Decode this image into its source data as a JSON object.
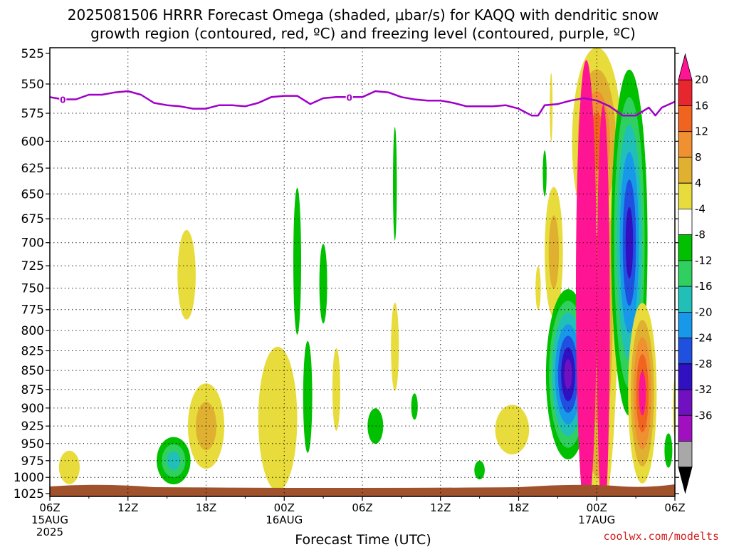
{
  "chart_data": {
    "type": "heatmap",
    "title_line1": "2025081506 HRRR Forecast Omega (shaded, μbar/s) for KAQQ with dendritic snow",
    "title_line2": "growth region (contoured, red, ºC) and freezing level (contoured, purple, ºC)",
    "xlabel": "Forecast Time (UTC)",
    "credit": "coolwx.com/modelts",
    "credit_color": "#d42020",
    "y_axis": {
      "scale": "pressure (hPa), inverted",
      "ticks": [
        "525",
        "550",
        "575",
        "600",
        "625",
        "650",
        "675",
        "700",
        "725",
        "750",
        "775",
        "800",
        "825",
        "850",
        "875",
        "900",
        "925",
        "950",
        "975",
        "1000",
        "1025"
      ],
      "range": [
        525,
        1025
      ]
    },
    "x_axis": {
      "range_hours": [
        0,
        48
      ],
      "ticks": [
        {
          "h": 0,
          "label": "06Z",
          "sub": "15AUG",
          "sub2": "2025"
        },
        {
          "h": 6,
          "label": "12Z",
          "sub": "",
          "sub2": ""
        },
        {
          "h": 12,
          "label": "18Z",
          "sub": "",
          "sub2": ""
        },
        {
          "h": 18,
          "label": "00Z",
          "sub": "16AUG",
          "sub2": ""
        },
        {
          "h": 24,
          "label": "06Z",
          "sub": "",
          "sub2": ""
        },
        {
          "h": 30,
          "label": "12Z",
          "sub": "",
          "sub2": ""
        },
        {
          "h": 36,
          "label": "18Z",
          "sub": "",
          "sub2": ""
        },
        {
          "h": 42,
          "label": "00Z",
          "sub": "17AUG",
          "sub2": ""
        },
        {
          "h": 48,
          "label": "06Z",
          "sub": "",
          "sub2": ""
        }
      ]
    },
    "grid": true,
    "colorbar": {
      "labels": [
        "20",
        "16",
        "12",
        "8",
        "4",
        "-4",
        "-8",
        "-12",
        "-16",
        "-20",
        "-24",
        "-28",
        "-32",
        "-36"
      ],
      "colors": [
        "#ff1493",
        "#e8262e",
        "#f06420",
        "#f09030",
        "#e0b030",
        "#e8dc3c",
        "#ffffff",
        "#00c000",
        "#30d060",
        "#20c0b8",
        "#1898e8",
        "#2050e0",
        "#3010c0",
        "#7010c0",
        "#a010c0",
        "#a8a8a8",
        "#000000"
      ]
    },
    "freezing_level": {
      "color": "#a000c8",
      "contour_label": "0",
      "label_hours": [
        1,
        23
      ],
      "points": [
        [
          0,
          561
        ],
        [
          1,
          563
        ],
        [
          2,
          563
        ],
        [
          3,
          559
        ],
        [
          4,
          559
        ],
        [
          5,
          557
        ],
        [
          6,
          556
        ],
        [
          7,
          559
        ],
        [
          8,
          566
        ],
        [
          9,
          568
        ],
        [
          10,
          569
        ],
        [
          11,
          571
        ],
        [
          12,
          571
        ],
        [
          13,
          568
        ],
        [
          14,
          568
        ],
        [
          15,
          569
        ],
        [
          16,
          566
        ],
        [
          17,
          561
        ],
        [
          18,
          560
        ],
        [
          19,
          560
        ],
        [
          20,
          567
        ],
        [
          21,
          562
        ],
        [
          22,
          561
        ],
        [
          23,
          561
        ],
        [
          24,
          561
        ],
        [
          25,
          556
        ],
        [
          26,
          557
        ],
        [
          27,
          561
        ],
        [
          28,
          563
        ],
        [
          29,
          564
        ],
        [
          30,
          564
        ],
        [
          31,
          566
        ],
        [
          32,
          569
        ],
        [
          33,
          569
        ],
        [
          34,
          569
        ],
        [
          35,
          568
        ],
        [
          36,
          571
        ],
        [
          37,
          577
        ],
        [
          37.5,
          577
        ],
        [
          38,
          568
        ],
        [
          39,
          567
        ],
        [
          40,
          564
        ],
        [
          41,
          562
        ],
        [
          42,
          564
        ],
        [
          43,
          569
        ],
        [
          44,
          577
        ],
        [
          45,
          577
        ],
        [
          46,
          570
        ],
        [
          46.5,
          577
        ],
        [
          47,
          570
        ],
        [
          48,
          565
        ]
      ]
    },
    "terrain": {
      "color": "#a0522d",
      "top_hpa": 1014
    },
    "omega_blobs": [
      {
        "h": 1.5,
        "p": 985,
        "rh": 0.8,
        "rp": 25,
        "levels": [
          4
        ]
      },
      {
        "h": 10.5,
        "p": 735,
        "rh": 0.7,
        "rp": 50,
        "levels": [
          4
        ]
      },
      {
        "h": 12,
        "p": 925,
        "rh": 1.4,
        "rp": 60,
        "levels": [
          4,
          8
        ]
      },
      {
        "h": 9.5,
        "p": 975,
        "rh": 1.3,
        "rp": 35,
        "levels": [
          -4,
          -8,
          -12
        ]
      },
      {
        "h": 17.5,
        "p": 915,
        "rh": 1.5,
        "rp": 100,
        "levels": [
          4
        ]
      },
      {
        "h": 19,
        "p": 720,
        "rh": 0.3,
        "rp": 80,
        "levels": [
          -4
        ]
      },
      {
        "h": 21,
        "p": 745,
        "rh": 0.3,
        "rp": 45,
        "levels": [
          -4
        ]
      },
      {
        "h": 19.8,
        "p": 885,
        "rh": 0.35,
        "rp": 75,
        "levels": [
          -4
        ]
      },
      {
        "h": 22,
        "p": 875,
        "rh": 0.3,
        "rp": 55,
        "levels": [
          4
        ]
      },
      {
        "h": 25,
        "p": 925,
        "rh": 0.6,
        "rp": 25,
        "levels": [
          -4
        ]
      },
      {
        "h": 26.5,
        "p": 640,
        "rh": 0.15,
        "rp": 55,
        "levels": [
          -4
        ]
      },
      {
        "h": 26.5,
        "p": 820,
        "rh": 0.3,
        "rp": 55,
        "levels": [
          4
        ]
      },
      {
        "h": 28,
        "p": 898,
        "rh": 0.25,
        "rp": 18,
        "levels": [
          -4
        ]
      },
      {
        "h": 33,
        "p": 989,
        "rh": 0.4,
        "rp": 14,
        "levels": [
          -4
        ]
      },
      {
        "h": 35.5,
        "p": 930,
        "rh": 1.3,
        "rp": 35,
        "levels": [
          4
        ]
      },
      {
        "h": 37.5,
        "p": 750,
        "rh": 0.2,
        "rp": 25,
        "levels": [
          4
        ]
      },
      {
        "h": 38,
        "p": 630,
        "rh": 0.15,
        "rp": 22,
        "levels": [
          -4
        ]
      },
      {
        "h": 38.7,
        "p": 710,
        "rh": 0.7,
        "rp": 70,
        "levels": [
          4,
          8
        ]
      },
      {
        "h": 38.5,
        "p": 570,
        "rh": 0.1,
        "rp": 30,
        "levels": [
          4
        ]
      },
      {
        "h": 39.8,
        "p": 855,
        "rh": 1.7,
        "rp": 110,
        "levels": [
          -4,
          -8,
          -12,
          -16,
          -20,
          -24,
          -28
        ]
      },
      {
        "h": 42,
        "p": 760,
        "rh": 1.6,
        "rp": 260,
        "levels": [
          4,
          8,
          12,
          16
        ]
      },
      {
        "h": 42,
        "p": 600,
        "rh": 1.9,
        "rp": 85,
        "levels": [
          4,
          8,
          12,
          16
        ]
      },
      {
        "h": 41.2,
        "p": 750,
        "rh": 0.8,
        "rp": 250,
        "levels": [
          20
        ]
      },
      {
        "h": 42.5,
        "p": 780,
        "rh": 0.5,
        "rp": 240,
        "levels": [
          20
        ]
      },
      {
        "h": 44.5,
        "p": 700,
        "rh": 1.4,
        "rp": 180,
        "levels": [
          -4,
          -8,
          -12,
          -16,
          -20,
          -24
        ]
      },
      {
        "h": 45.5,
        "p": 880,
        "rh": 1.1,
        "rp": 120,
        "levels": [
          4,
          8,
          12,
          16,
          20
        ]
      },
      {
        "h": 47.5,
        "p": 960,
        "rh": 0.3,
        "rp": 25,
        "levels": [
          -4
        ]
      },
      {
        "h": 48,
        "p": 900,
        "rh": 0.15,
        "rp": 40,
        "levels": [
          4
        ]
      }
    ]
  }
}
